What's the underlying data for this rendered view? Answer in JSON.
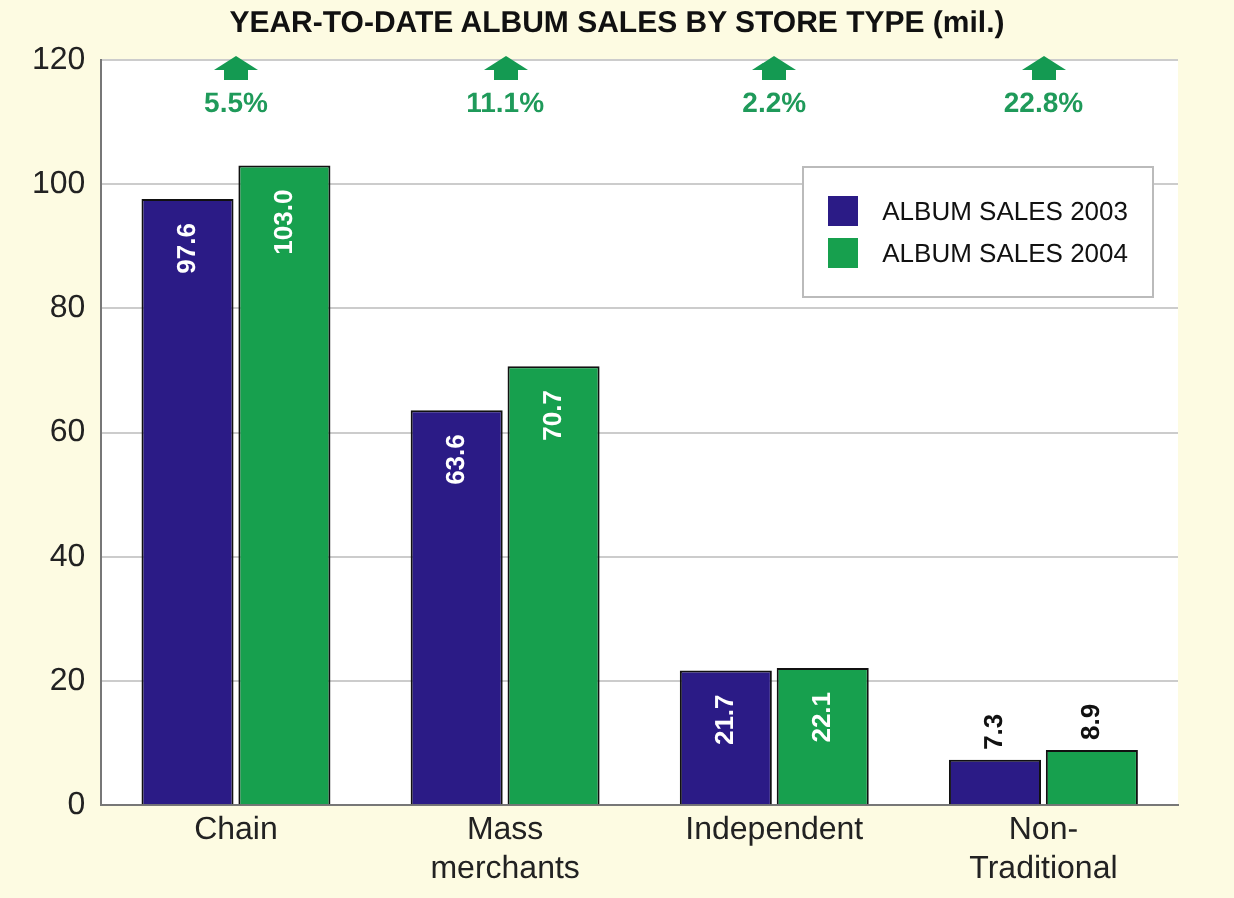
{
  "chart_data": {
    "type": "bar",
    "title": "YEAR-TO-DATE ALBUM SALES BY STORE TYPE (mil.)",
    "categories": [
      "Chain",
      "Mass merchants",
      "Independent",
      "Non-Traditional"
    ],
    "series": [
      {
        "name": "ALBUM SALES 2003",
        "color": "#2b1b86",
        "values": [
          97.6,
          63.6,
          21.7,
          7.3
        ],
        "value_labels": [
          "97.6",
          "63.6",
          "21.7",
          "7.3"
        ]
      },
      {
        "name": "ALBUM SALES 2004",
        "color": "#17a04e",
        "values": [
          103.0,
          70.7,
          22.1,
          8.9
        ],
        "value_labels": [
          "103.0",
          "70.7",
          "22.1",
          "8.9"
        ]
      }
    ],
    "ylim": [
      0,
      120
    ],
    "yticks": [
      0,
      20,
      40,
      60,
      80,
      100,
      120
    ],
    "grid": "y",
    "legend": "top right",
    "annotations": [
      "5.5%",
      "11.1%",
      "2.2%",
      "22.8%"
    ]
  }
}
